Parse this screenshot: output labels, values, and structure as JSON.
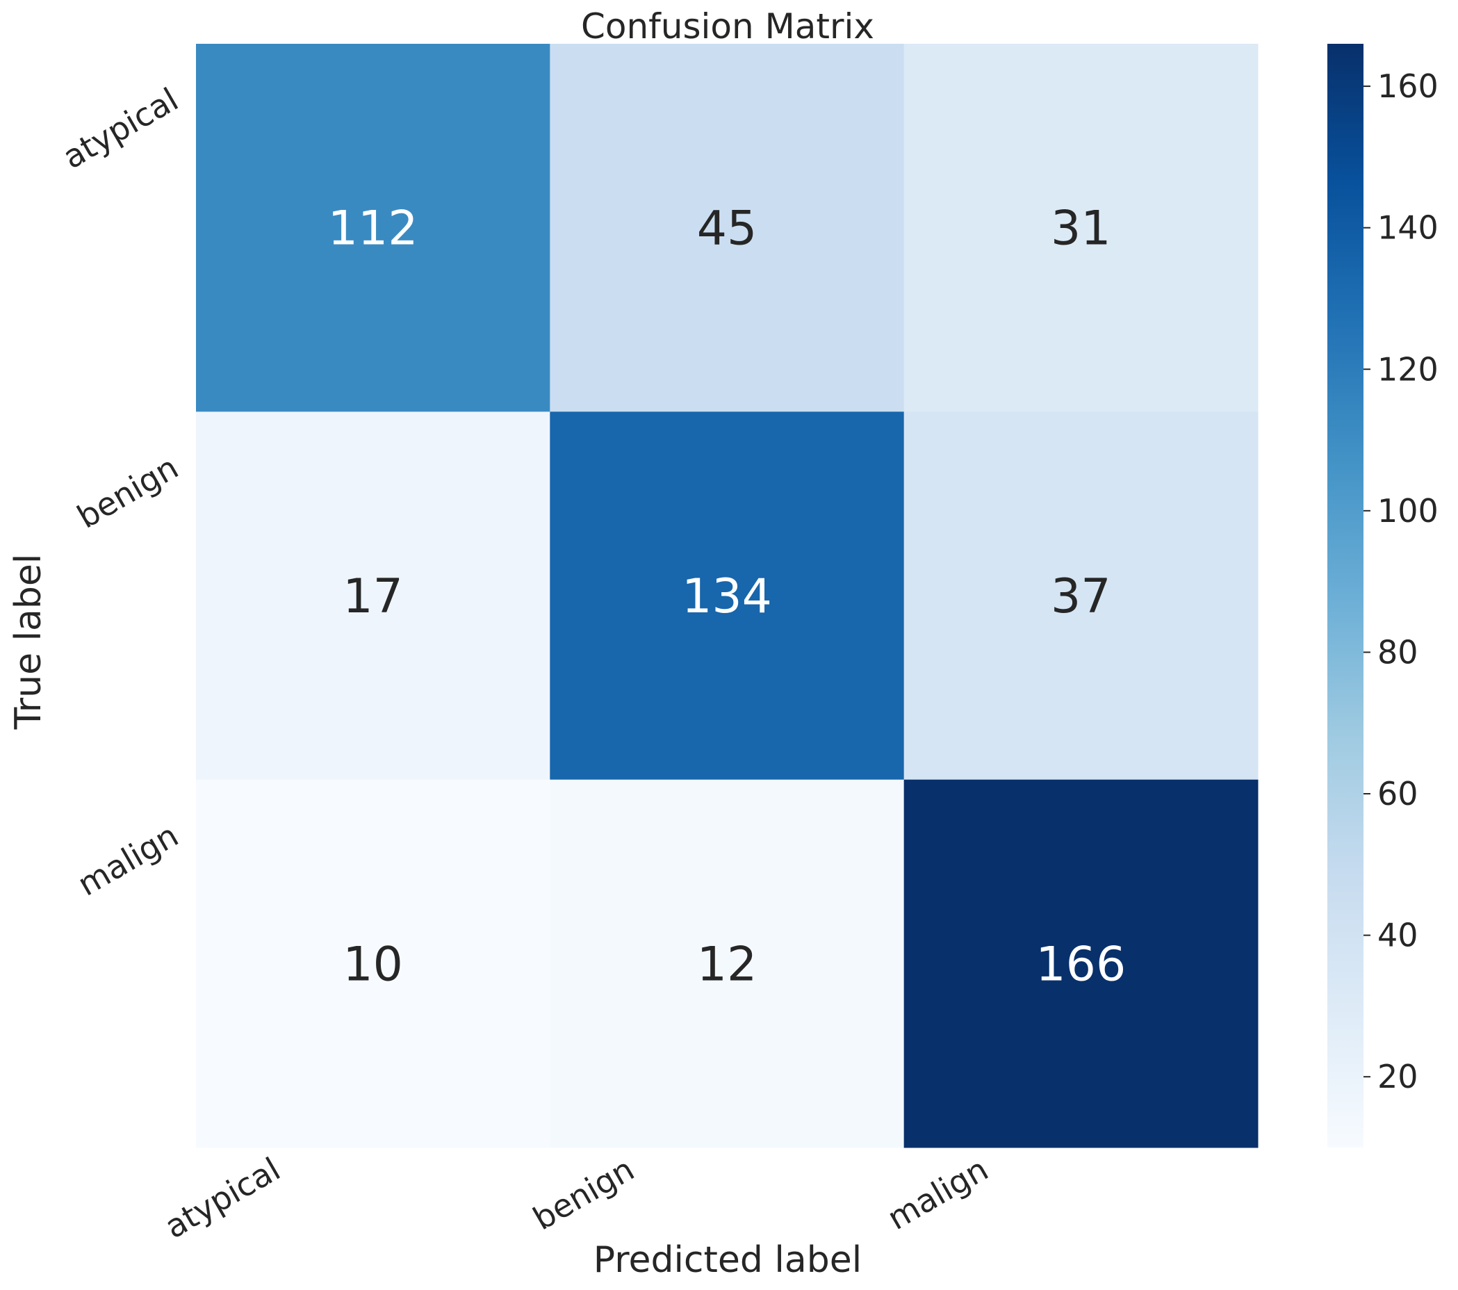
{
  "chart_data": {
    "type": "heatmap",
    "title": "Confusion Matrix",
    "xlabel": "Predicted label",
    "ylabel": "True label",
    "x_categories": [
      "atypical",
      "benign",
      "malign"
    ],
    "y_categories": [
      "atypical",
      "benign",
      "malign"
    ],
    "values": [
      [
        112,
        45,
        31
      ],
      [
        17,
        134,
        37
      ],
      [
        10,
        12,
        166
      ]
    ],
    "colormap": "Blues",
    "color_range": [
      10,
      166
    ],
    "colorbar": {
      "ticks": [
        20,
        40,
        60,
        80,
        100,
        120,
        140,
        160
      ],
      "tick_labels": [
        "20",
        "40",
        "60",
        "80",
        "100",
        "120",
        "140",
        "160"
      ]
    },
    "grid": false,
    "legend": "colorbar-right"
  }
}
